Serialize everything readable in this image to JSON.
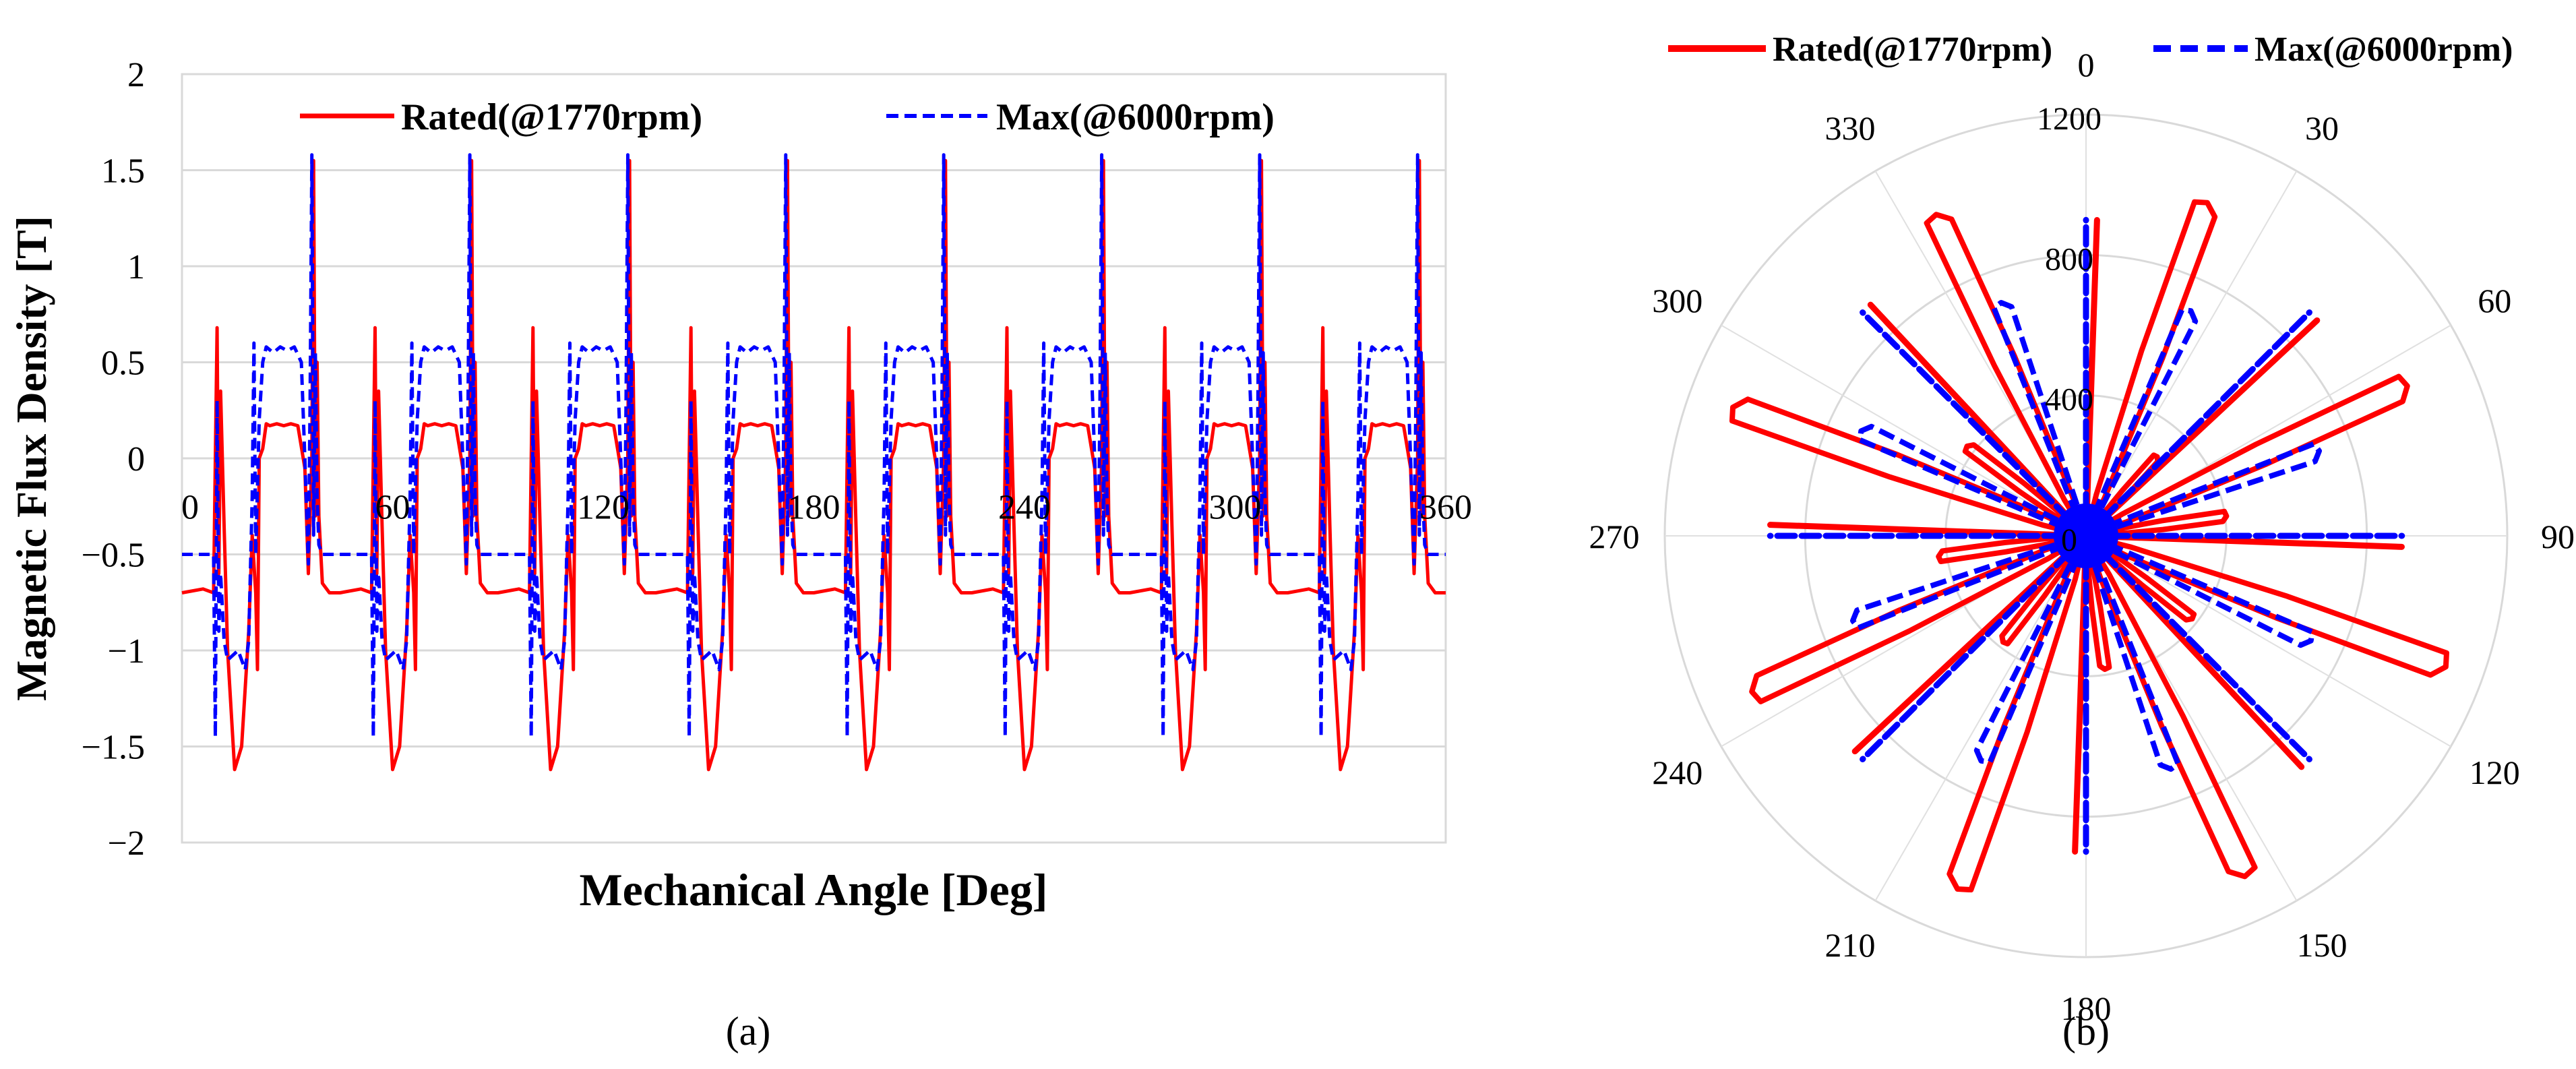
{
  "chart_data": [
    {
      "type": "line",
      "panel_label": "(a)",
      "title": "",
      "xlabel": "Mechanical Angle [Deg]",
      "ylabel": "Magnetic Flux Density [T]",
      "xlim": [
        0,
        360
      ],
      "ylim": [
        -2,
        2
      ],
      "x_ticks": [
        "0",
        "60",
        "120",
        "180",
        "240",
        "300",
        "360"
      ],
      "y_ticks": [
        "2",
        "1.5",
        "1",
        "0.5",
        "0",
        "−0.5",
        "−1",
        "−1.5",
        "−2"
      ],
      "grid": "horizontal",
      "legend": "top-center",
      "period_deg": 45,
      "series": [
        {
          "name": "Rated(@1770rpm)",
          "color": "#ff0000",
          "style": "solid",
          "x": [
            0,
            6,
            9,
            9.5,
            10,
            10.5,
            11,
            12,
            13,
            15,
            17,
            19,
            20,
            21,
            21.5,
            22,
            23,
            24,
            25,
            27,
            29,
            31,
            33,
            35,
            36,
            37,
            37.5,
            38,
            38.5,
            39,
            40,
            42,
            45
          ],
          "values": [
            -0.7,
            -0.68,
            -0.7,
            0.0,
            0.68,
            -0.6,
            0.35,
            -0.35,
            -1.0,
            -1.62,
            -1.5,
            -0.9,
            -0.4,
            -0.7,
            -1.1,
            0.0,
            0.05,
            0.18,
            0.17,
            0.18,
            0.17,
            0.18,
            0.17,
            -0.05,
            -0.6,
            0.0,
            1.55,
            -0.3,
            0.5,
            -0.3,
            -0.65,
            -0.7,
            -0.7
          ]
        },
        {
          "name": "Max(@6000rpm)",
          "color": "#0000ff",
          "style": "dashed",
          "x": [
            0,
            7,
            9,
            9.5,
            10,
            10.5,
            11,
            12,
            13,
            16,
            18,
            19,
            20,
            20.5,
            21,
            22,
            23,
            24,
            26,
            28,
            30,
            32,
            34,
            35,
            36,
            36.5,
            37,
            37.5,
            38,
            38.5,
            39,
            40,
            42,
            45
          ],
          "values": [
            -0.5,
            -0.5,
            -0.5,
            -1.45,
            0.3,
            -0.9,
            -0.6,
            -0.95,
            -1.05,
            -1.0,
            -1.1,
            -0.95,
            -0.2,
            0.6,
            -0.5,
            0.2,
            0.5,
            0.58,
            0.55,
            0.58,
            0.56,
            0.58,
            0.5,
            0.0,
            -0.55,
            0.3,
            1.58,
            -0.4,
            0.55,
            -0.2,
            -0.45,
            -0.5,
            -0.5,
            -0.5
          ]
        }
      ]
    },
    {
      "type": "polar",
      "panel_label": "(b)",
      "title": "",
      "angle_ticks": [
        "0",
        "30",
        "60",
        "90",
        "120",
        "150",
        "180",
        "210",
        "240",
        "270",
        "300",
        "330"
      ],
      "radial_ticks": [
        "0",
        "400",
        "800",
        "1200"
      ],
      "rlim": [
        0,
        1200
      ],
      "legend": "top",
      "series": [
        {
          "name": "Rated(@1770rpm)",
          "color": "#ff0000",
          "style": "solid",
          "petals": [
            {
              "angle": 20,
              "r": 1000
            },
            {
              "angle": 42,
              "r": 300
            },
            {
              "angle": 65,
              "r": 1000
            },
            {
              "angle": 110,
              "r": 1080
            },
            {
              "angle": 155,
              "r": 1060
            },
            {
              "angle": 200,
              "r": 1060
            },
            {
              "angle": 245,
              "r": 1040
            },
            {
              "angle": 290,
              "r": 1060
            },
            {
              "angle": 335,
              "r": 1000
            },
            {
              "angle": 82,
              "r": 400
            },
            {
              "angle": 128,
              "r": 380
            },
            {
              "angle": 172,
              "r": 380
            },
            {
              "angle": 218,
              "r": 380
            },
            {
              "angle": 262,
              "r": 420
            },
            {
              "angle": 307,
              "r": 420
            }
          ],
          "spikes": [
            {
              "angle": 2,
              "r": 900
            },
            {
              "angle": 47,
              "r": 900
            },
            {
              "angle": 92,
              "r": 900
            },
            {
              "angle": 137,
              "r": 900
            },
            {
              "angle": 182,
              "r": 900
            },
            {
              "angle": 227,
              "r": 900
            },
            {
              "angle": 272,
              "r": 900
            },
            {
              "angle": 317,
              "r": 900
            }
          ]
        },
        {
          "name": "Max(@6000rpm)",
          "color": "#0000ff",
          "style": "dashed",
          "petals": [
            {
              "angle": 25,
              "r": 700
            },
            {
              "angle": 70,
              "r": 700
            },
            {
              "angle": 115,
              "r": 700
            },
            {
              "angle": 160,
              "r": 700
            },
            {
              "angle": 205,
              "r": 700
            },
            {
              "angle": 250,
              "r": 700
            },
            {
              "angle": 295,
              "r": 700
            },
            {
              "angle": 340,
              "r": 700
            }
          ],
          "spikes": [
            {
              "angle": 0,
              "r": 900
            },
            {
              "angle": 45,
              "r": 900
            },
            {
              "angle": 90,
              "r": 900
            },
            {
              "angle": 135,
              "r": 900
            },
            {
              "angle": 180,
              "r": 900
            },
            {
              "angle": 225,
              "r": 900
            },
            {
              "angle": 270,
              "r": 900
            },
            {
              "angle": 315,
              "r": 900
            }
          ]
        }
      ]
    }
  ]
}
